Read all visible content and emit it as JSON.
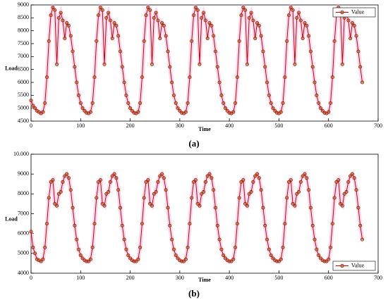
{
  "chart_data": [
    {
      "type": "line",
      "label": "(a)",
      "xlabel": "Time",
      "ylabel": "Load",
      "x": [
        0,
        4,
        8,
        12,
        16,
        20,
        24,
        28,
        32,
        36,
        40,
        44,
        48,
        52,
        56,
        60,
        64,
        68,
        72,
        76,
        80,
        84,
        88,
        92,
        96,
        100,
        104,
        108,
        112,
        116,
        120,
        124,
        128,
        132,
        136,
        140,
        144,
        148,
        152,
        156,
        160,
        164,
        168,
        172,
        176,
        180,
        184,
        188,
        192,
        196,
        200,
        204,
        208,
        212,
        216,
        220,
        224,
        228,
        232,
        236,
        240,
        244,
        248,
        252,
        256,
        260,
        264,
        268,
        272,
        276,
        280,
        284,
        288,
        292,
        296,
        300,
        304,
        308,
        312,
        316,
        320,
        324,
        328,
        332,
        336,
        340,
        344,
        348,
        352,
        356,
        360,
        364,
        368,
        372,
        376,
        380,
        384,
        388,
        392,
        396,
        400,
        404,
        408,
        412,
        416,
        420,
        424,
        428,
        432,
        436,
        440,
        444,
        448,
        452,
        456,
        460,
        464,
        468,
        472,
        476,
        480,
        484,
        488,
        492,
        496,
        500,
        504,
        508,
        512,
        516,
        520,
        524,
        528,
        532,
        536,
        540,
        544,
        548,
        552,
        556,
        560,
        564,
        568,
        572,
        576,
        580,
        584,
        588,
        592,
        596,
        600,
        604,
        608,
        612,
        616,
        620,
        624,
        628,
        632,
        636,
        640,
        644,
        648,
        652,
        656,
        660,
        664,
        668
      ],
      "series": [
        {
          "name": "Value",
          "color": "#cc0000",
          "values": [
            5300,
            5100,
            5000,
            4900,
            4850,
            4800,
            4850,
            5200,
            6200,
            7600,
            8600,
            8900,
            8800,
            6700,
            8500,
            8700,
            8400,
            7700,
            8300,
            8200,
            7800,
            7200,
            6600,
            6000,
            5500,
            5200,
            5000,
            4900,
            4820,
            4800,
            4850,
            5200,
            6200,
            7600,
            8600,
            8900,
            8800,
            6700,
            8500,
            8700,
            8400,
            7700,
            8300,
            8200,
            7800,
            7200,
            6600,
            6000,
            5500,
            5200,
            5000,
            4900,
            4820,
            4800,
            4850,
            5200,
            6200,
            7600,
            8600,
            8900,
            8800,
            6700,
            8500,
            8700,
            8400,
            7700,
            8300,
            8200,
            7800,
            7200,
            6600,
            6000,
            5500,
            5200,
            5000,
            4900,
            4820,
            4800,
            4850,
            5200,
            6200,
            7600,
            8600,
            8900,
            8800,
            6700,
            8500,
            8700,
            8400,
            7700,
            8300,
            8200,
            7800,
            7200,
            6600,
            6000,
            5500,
            5200,
            5000,
            4900,
            4820,
            4800,
            4850,
            5200,
            6200,
            7600,
            8600,
            8900,
            8800,
            6700,
            8500,
            8700,
            8400,
            7700,
            8300,
            8200,
            7800,
            7200,
            6600,
            6000,
            5500,
            5200,
            5000,
            4900,
            4820,
            4800,
            4850,
            5200,
            6200,
            7600,
            8600,
            8900,
            8800,
            6700,
            8500,
            8700,
            8400,
            7700,
            8300,
            8200,
            7800,
            7200,
            6600,
            6000,
            5500,
            5200,
            5000,
            4900,
            4820,
            4800,
            4850,
            5200,
            6200,
            7600,
            8600,
            8900,
            8800,
            6700,
            8500,
            8700,
            8400,
            7700,
            8300,
            8200,
            7800,
            7200,
            6600,
            6000
          ]
        }
      ],
      "xlim": [
        0,
        700
      ],
      "xticks": [
        0,
        100,
        200,
        300,
        400,
        500,
        600,
        700
      ],
      "ylim": [
        4500,
        9000
      ],
      "yticks": [
        4500,
        5000,
        5500,
        6000,
        6500,
        7000,
        7500,
        8000,
        8500,
        9000
      ],
      "legend": "upper right"
    },
    {
      "type": "line",
      "label": "(b)",
      "xlabel": "Time",
      "ylabel": "Load",
      "x": [
        0,
        4,
        8,
        12,
        16,
        20,
        24,
        28,
        32,
        36,
        40,
        44,
        48,
        52,
        56,
        60,
        64,
        68,
        72,
        76,
        80,
        84,
        88,
        92,
        96,
        100,
        104,
        108,
        112,
        116,
        120,
        124,
        128,
        132,
        136,
        140,
        144,
        148,
        152,
        156,
        160,
        164,
        168,
        172,
        176,
        180,
        184,
        188,
        192,
        196,
        200,
        204,
        208,
        212,
        216,
        220,
        224,
        228,
        232,
        236,
        240,
        244,
        248,
        252,
        256,
        260,
        264,
        268,
        272,
        276,
        280,
        284,
        288,
        292,
        296,
        300,
        304,
        308,
        312,
        316,
        320,
        324,
        328,
        332,
        336,
        340,
        344,
        348,
        352,
        356,
        360,
        364,
        368,
        372,
        376,
        380,
        384,
        388,
        392,
        396,
        400,
        404,
        408,
        412,
        416,
        420,
        424,
        428,
        432,
        436,
        440,
        444,
        448,
        452,
        456,
        460,
        464,
        468,
        472,
        476,
        480,
        484,
        488,
        492,
        496,
        500,
        504,
        508,
        512,
        516,
        520,
        524,
        528,
        532,
        536,
        540,
        544,
        548,
        552,
        556,
        560,
        564,
        568,
        572,
        576,
        580,
        584,
        588,
        592,
        596,
        600,
        604,
        608,
        612,
        616,
        620,
        624,
        628,
        632,
        636,
        640,
        644,
        648,
        652,
        656,
        660,
        664,
        668
      ],
      "series": [
        {
          "name": "Value",
          "color": "#cc0000",
          "values": [
            6100,
            5300,
            5000,
            4700,
            4650,
            4600,
            4700,
            5300,
            6500,
            7800,
            8600,
            8700,
            7500,
            7400,
            8000,
            8100,
            8600,
            8900,
            9000,
            8800,
            8200,
            7300,
            6400,
            5700,
            5200,
            4900,
            4750,
            4650,
            4600,
            4600,
            4700,
            5300,
            6500,
            7800,
            8600,
            8700,
            7500,
            7400,
            8000,
            8100,
            8600,
            8900,
            9000,
            8800,
            8200,
            7300,
            6400,
            5700,
            5200,
            4900,
            4750,
            4650,
            4600,
            4600,
            4700,
            5300,
            6500,
            7800,
            8600,
            8700,
            7500,
            7400,
            8000,
            8100,
            8600,
            8900,
            9000,
            8800,
            8200,
            7300,
            6400,
            5700,
            5200,
            4900,
            4750,
            4650,
            4600,
            4600,
            4700,
            5300,
            6500,
            7800,
            8600,
            8700,
            7500,
            7400,
            8000,
            8100,
            8600,
            8900,
            9000,
            8800,
            8200,
            7300,
            6400,
            5700,
            5200,
            4900,
            4750,
            4650,
            4600,
            4600,
            4700,
            5300,
            6500,
            7800,
            8600,
            8700,
            7500,
            7400,
            8000,
            8100,
            8600,
            8900,
            9000,
            8800,
            8200,
            7300,
            6400,
            5700,
            5200,
            4900,
            4750,
            4650,
            4600,
            4600,
            4700,
            5300,
            6500,
            7800,
            8600,
            8700,
            7500,
            7400,
            8000,
            8100,
            8600,
            8900,
            9000,
            8800,
            8200,
            7300,
            6400,
            5700,
            5200,
            4900,
            4750,
            4650,
            4600,
            4600,
            4700,
            5300,
            6500,
            7800,
            8600,
            8700,
            7500,
            7400,
            8000,
            8100,
            8600,
            8900,
            9000,
            8800,
            8200,
            7300,
            6400,
            5700
          ]
        }
      ],
      "xlim": [
        0,
        700
      ],
      "xticks": [
        0,
        100,
        200,
        300,
        400,
        500,
        600,
        700
      ],
      "ylim": [
        4000,
        10000
      ],
      "yticks": [
        4000,
        5000,
        6000,
        7000,
        8000,
        9000,
        {
          "value": 10000,
          "label": "10.000"
        }
      ],
      "legend": "lower right"
    }
  ]
}
